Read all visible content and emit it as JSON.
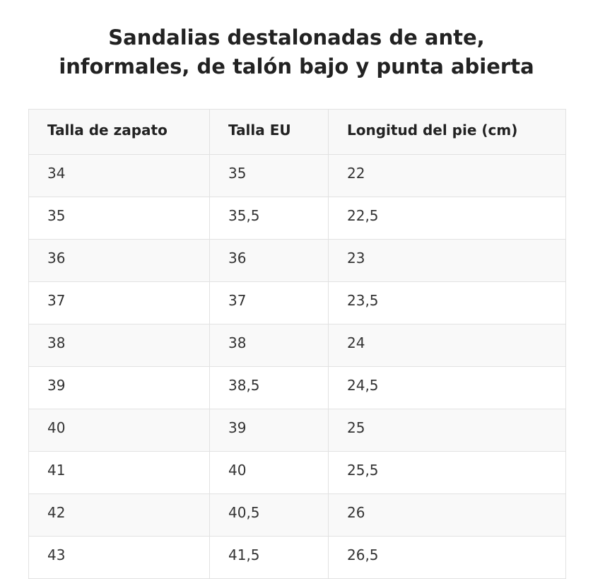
{
  "title": {
    "line1": "Sandalias destalonadas de ante,",
    "line2": "informales, de talón bajo y punta abierta"
  },
  "table": {
    "headers": [
      "Talla de zapato",
      "Talla EU",
      "Longitud del pie (cm)"
    ],
    "rows": [
      [
        "34",
        "35",
        "22"
      ],
      [
        "35",
        "35,5",
        "22,5"
      ],
      [
        "36",
        "36",
        "23"
      ],
      [
        "37",
        "37",
        "23,5"
      ],
      [
        "38",
        "38",
        "24"
      ],
      [
        "39",
        "38,5",
        "24,5"
      ],
      [
        "40",
        "39",
        "25"
      ],
      [
        "41",
        "40",
        "25,5"
      ],
      [
        "42",
        "40,5",
        "26"
      ],
      [
        "43",
        "41,5",
        "26,5"
      ]
    ]
  }
}
